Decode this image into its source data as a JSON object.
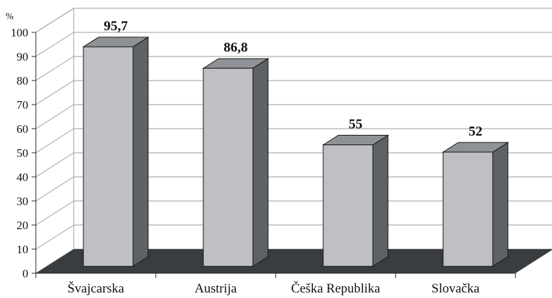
{
  "chart_data": {
    "type": "bar",
    "title": "",
    "xlabel": "",
    "ylabel": "",
    "unit": "%",
    "categories": [
      "Švajcarska",
      "Austrija",
      "Češka Republika",
      "Slovačka"
    ],
    "values": [
      95.7,
      86.8,
      55,
      52
    ],
    "value_labels": [
      "95,7",
      "86,8",
      "55",
      "52"
    ],
    "yticks": [
      "0",
      "10",
      "20",
      "30",
      "40",
      "50",
      "60",
      "70",
      "80",
      "90",
      "100"
    ],
    "ylim": [
      0,
      100
    ],
    "grid": true,
    "legend": "none",
    "style": "3d",
    "colors": {
      "bar_front": "#c0c0c4",
      "bar_side": "#5e6266",
      "bar_top": "#8e9296",
      "floor": "#3a3d40",
      "gridline": "#9a9a9a"
    }
  }
}
